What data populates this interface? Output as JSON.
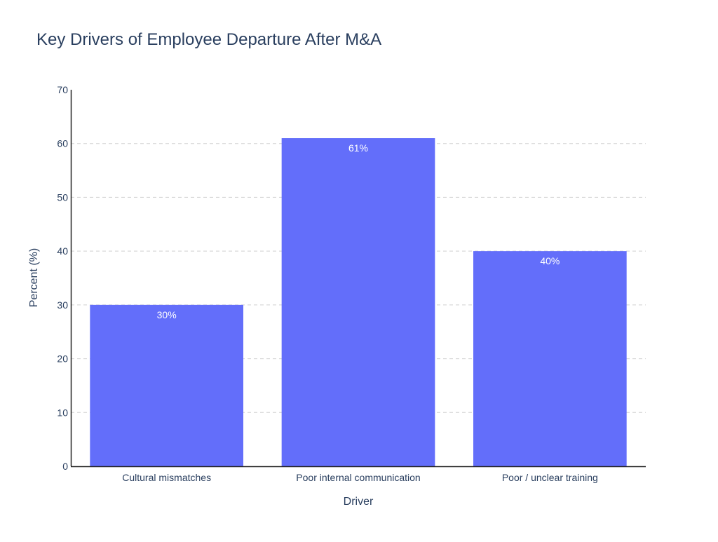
{
  "chart_data": {
    "type": "bar",
    "title": "Key Drivers of Employee Departure After M&A",
    "xlabel": "Driver",
    "ylabel": "Percent (%)",
    "categories": [
      "Cultural mismatches",
      "Poor internal communication",
      "Poor / unclear training"
    ],
    "values": [
      30,
      61,
      40
    ],
    "data_labels": [
      "30%",
      "61%",
      "40%"
    ],
    "ylim": [
      0,
      70
    ],
    "yticks": [
      0,
      10,
      20,
      30,
      40,
      50,
      60,
      70
    ],
    "grid": true,
    "colors": {
      "bar": "#636efa",
      "text": "#2a3f5f",
      "grid": "#d0d0d0",
      "axis": "#222222"
    }
  }
}
